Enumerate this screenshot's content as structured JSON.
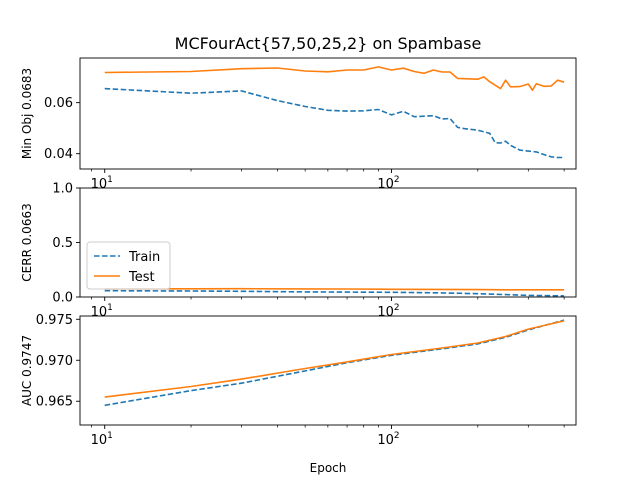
{
  "chart_data": {
    "type": "line",
    "title": "MCFourAct{57,50,25,2} on Spambase",
    "xlabel": "Epoch",
    "xscale": "log",
    "xlim": [
      8.2,
      440
    ],
    "x_major_ticks": [
      {
        "base": "10",
        "exp": "1",
        "value": 10
      },
      {
        "base": "10",
        "exp": "2",
        "value": 100
      }
    ],
    "legend": {
      "placement": "lower-left",
      "panel": 1,
      "entries": [
        "Train",
        "Test"
      ]
    },
    "colors": {
      "train": "#1f77b4",
      "test": "#ff7f0e"
    },
    "panels": [
      {
        "ylabel": "Min Obj 0.0683",
        "ylim": [
          0.034,
          0.0775
        ],
        "yticks": [
          0.04,
          0.06
        ],
        "ytick_labels": [
          "0.04",
          "0.06"
        ],
        "series": [
          {
            "name": "Train",
            "style": "dashed",
            "x": [
              10,
              20,
              30,
              40,
              50,
              60,
              70,
              80,
              90,
              100,
              110,
              120,
              140,
              150,
              160,
              170,
              180,
              200,
              220,
              230,
              240,
              250,
              260,
              280,
              300,
              320,
              340,
              360,
              380,
              400
            ],
            "y": [
              0.0655,
              0.0637,
              0.0646,
              0.0608,
              0.0585,
              0.057,
              0.0567,
              0.0568,
              0.0573,
              0.0552,
              0.0566,
              0.0545,
              0.0549,
              0.0536,
              0.0538,
              0.0503,
              0.0498,
              0.0492,
              0.048,
              0.0443,
              0.0442,
              0.0449,
              0.0433,
              0.0414,
              0.041,
              0.0407,
              0.0397,
              0.0388,
              0.0385,
              0.0385
            ]
          },
          {
            "name": "Test",
            "style": "solid",
            "x": [
              10,
              20,
              30,
              40,
              50,
              60,
              70,
              80,
              90,
              100,
              110,
              120,
              130,
              140,
              150,
              160,
              170,
              200,
              210,
              220,
              240,
              250,
              260,
              280,
              300,
              310,
              320,
              340,
              360,
              380,
              400
            ],
            "y": [
              0.0718,
              0.0722,
              0.0733,
              0.0736,
              0.0724,
              0.0721,
              0.0728,
              0.0728,
              0.074,
              0.0728,
              0.0735,
              0.0722,
              0.0715,
              0.0728,
              0.072,
              0.072,
              0.0695,
              0.0692,
              0.0701,
              0.0682,
              0.0655,
              0.0688,
              0.0662,
              0.0663,
              0.0673,
              0.0649,
              0.0674,
              0.0664,
              0.0665,
              0.0688,
              0.068
            ]
          }
        ]
      },
      {
        "ylabel": "CERR 0.0663",
        "ylim": [
          0.0,
          1.0
        ],
        "yticks": [
          0.0,
          0.5,
          1.0
        ],
        "ytick_labels": [
          "0.0",
          "0.5",
          "1.0"
        ],
        "series": [
          {
            "name": "Train",
            "style": "dashed",
            "x": [
              10,
              20,
              30,
              50,
              70,
              100,
              150,
              200,
              250,
              300,
              400
            ],
            "y": [
              0.058,
              0.055,
              0.052,
              0.047,
              0.045,
              0.043,
              0.038,
              0.03,
              0.022,
              0.015,
              0.01
            ]
          },
          {
            "name": "Test",
            "style": "solid",
            "x": [
              10,
              20,
              30,
              50,
              70,
              100,
              150,
              200,
              250,
              300,
              400
            ],
            "y": [
              0.075,
              0.075,
              0.076,
              0.074,
              0.073,
              0.071,
              0.07,
              0.068,
              0.066,
              0.066,
              0.066
            ]
          }
        ]
      },
      {
        "ylabel": "AUC 0.9747",
        "ylim": [
          0.9621,
          0.9754
        ],
        "yticks": [
          0.965,
          0.97,
          0.975
        ],
        "ytick_labels": [
          "0.965",
          "0.970",
          "0.975"
        ],
        "series": [
          {
            "name": "Train",
            "style": "dashed",
            "x": [
              10,
              20,
              30,
              50,
              70,
              100,
              150,
              200,
              250,
              300,
              400
            ],
            "y": [
              0.9645,
              0.9663,
              0.9672,
              0.9687,
              0.9697,
              0.9706,
              0.9714,
              0.972,
              0.9728,
              0.9737,
              0.9749
            ]
          },
          {
            "name": "Test",
            "style": "solid",
            "x": [
              10,
              20,
              30,
              50,
              70,
              100,
              150,
              200,
              250,
              300,
              400
            ],
            "y": [
              0.9655,
              0.9668,
              0.9677,
              0.969,
              0.9698,
              0.9707,
              0.9715,
              0.9721,
              0.9729,
              0.9738,
              0.9748
            ]
          }
        ]
      }
    ]
  }
}
